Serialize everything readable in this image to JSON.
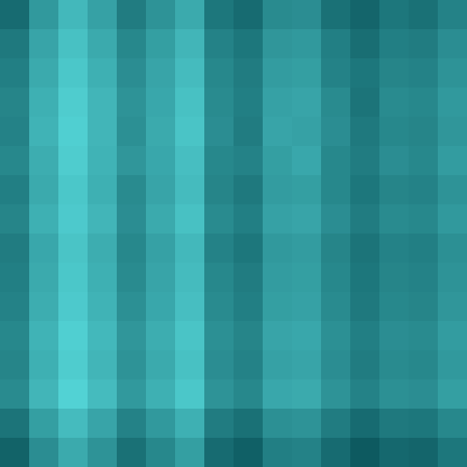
{
  "chart_data": {
    "type": "heatmap",
    "tick_labels": false,
    "cells": [
      [
        36,
        52,
        63,
        55,
        42,
        50,
        58,
        40,
        36,
        47,
        48,
        38,
        34,
        40,
        38,
        44
      ],
      [
        41,
        56,
        66,
        58,
        46,
        54,
        62,
        44,
        40,
        51,
        52,
        43,
        37,
        43,
        42,
        48
      ],
      [
        43,
        58,
        68,
        60,
        48,
        56,
        64,
        46,
        42,
        53,
        54,
        44,
        40,
        45,
        44,
        50
      ],
      [
        45,
        60,
        70,
        62,
        50,
        57,
        66,
        47,
        43,
        55,
        56,
        47,
        39,
        47,
        46,
        52
      ],
      [
        44,
        61,
        71,
        62,
        49,
        58,
        67,
        48,
        42,
        56,
        55,
        48,
        41,
        46,
        45,
        51
      ],
      [
        46,
        59,
        70,
        61,
        51,
        57,
        65,
        46,
        44,
        54,
        57,
        46,
        42,
        48,
        46,
        53
      ],
      [
        43,
        58,
        68,
        60,
        47,
        56,
        64,
        45,
        41,
        53,
        54,
        46,
        40,
        45,
        44,
        50
      ],
      [
        45,
        60,
        69,
        62,
        48,
        58,
        66,
        47,
        43,
        55,
        56,
        48,
        42,
        47,
        46,
        52
      ],
      [
        42,
        57,
        67,
        59,
        46,
        55,
        63,
        44,
        40,
        52,
        53,
        45,
        39,
        44,
        43,
        49
      ],
      [
        43,
        58,
        68,
        60,
        47,
        56,
        64,
        46,
        42,
        53,
        54,
        46,
        40,
        45,
        44,
        50
      ],
      [
        44,
        59,
        69,
        61,
        49,
        57,
        65,
        47,
        43,
        54,
        55,
        47,
        41,
        46,
        45,
        51
      ],
      [
        46,
        61,
        71,
        63,
        51,
        59,
        67,
        49,
        45,
        56,
        57,
        49,
        43,
        48,
        47,
        53
      ],
      [
        45,
        60,
        70,
        62,
        50,
        58,
        66,
        48,
        44,
        55,
        56,
        48,
        42,
        47,
        46,
        52
      ],
      [
        47,
        62,
        72,
        64,
        52,
        60,
        68,
        50,
        46,
        57,
        58,
        50,
        44,
        49,
        48,
        54
      ],
      [
        39,
        54,
        64,
        56,
        44,
        52,
        60,
        42,
        38,
        49,
        50,
        42,
        36,
        41,
        40,
        46
      ],
      [
        33,
        48,
        58,
        50,
        38,
        46,
        54,
        36,
        32,
        43,
        44,
        36,
        30,
        35,
        34,
        40
      ]
    ]
  }
}
